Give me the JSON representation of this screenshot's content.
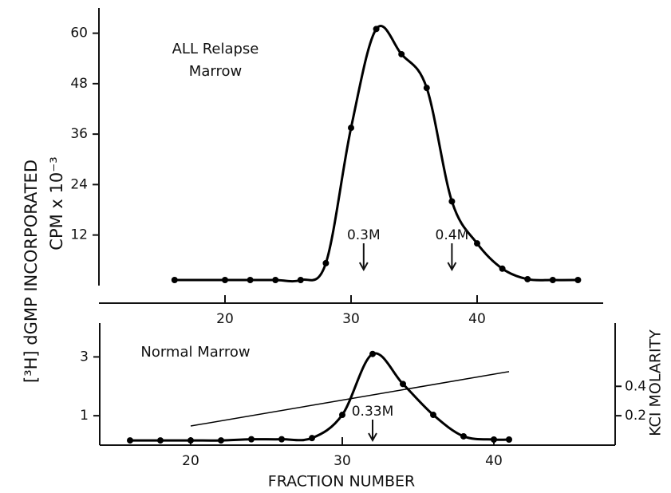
{
  "chart_data": [
    {
      "type": "line",
      "title": [
        "ALL Relapse",
        "Marrow"
      ],
      "ylabel": [
        "[³H] dGMP INCORPORATED",
        "CPM x 10⁻³"
      ],
      "xlim": [
        10,
        50
      ],
      "ylim": [
        -4.2,
        66
      ],
      "xticks": [
        20,
        30,
        40
      ],
      "yticks": [
        12,
        24,
        36,
        48,
        60
      ],
      "series": [
        {
          "color": "#000000",
          "markers": true,
          "x": [
            16,
            20,
            22,
            24,
            26,
            28,
            30,
            32,
            34,
            36,
            38,
            40,
            42,
            44,
            46,
            48
          ],
          "values": [
            1.3,
            1.3,
            1.3,
            1.3,
            1.3,
            5.3,
            37.5,
            61,
            55,
            47,
            20,
            10,
            4,
            1.5,
            1.3,
            1.3
          ]
        }
      ],
      "annotations": [
        {
          "text": "0.3M",
          "x": 31
        },
        {
          "text": "0.4M",
          "x": 38
        }
      ]
    },
    {
      "type": "line",
      "title": [
        "Normal Marrow"
      ],
      "xlabel": "FRACTION NUMBER",
      "y2label": "KCI MOLARITY",
      "xlim": [
        14,
        48
      ],
      "ylim": [
        0,
        4.15
      ],
      "y2lim": [
        0,
        0.83
      ],
      "xticks": [
        20,
        30,
        40
      ],
      "yticks": [
        1,
        3
      ],
      "y2ticks": [
        0.2,
        0.4
      ],
      "series": [
        {
          "color": "#000000",
          "markers": true,
          "x": [
            16,
            18,
            20,
            22,
            24,
            26,
            28,
            30,
            32,
            34,
            36,
            38,
            40,
            41
          ],
          "values": [
            0.16,
            0.16,
            0.16,
            0.16,
            0.2,
            0.2,
            0.24,
            1.03,
            3.1,
            2.08,
            1.03,
            0.3,
            0.19,
            0.19
          ]
        },
        {
          "color": "#000000",
          "markers": false,
          "axis": "y2",
          "x": [
            20,
            41
          ],
          "values": [
            0.13,
            0.5
          ]
        }
      ],
      "annotations": [
        {
          "text": "0.33M",
          "x": 32
        }
      ]
    }
  ]
}
